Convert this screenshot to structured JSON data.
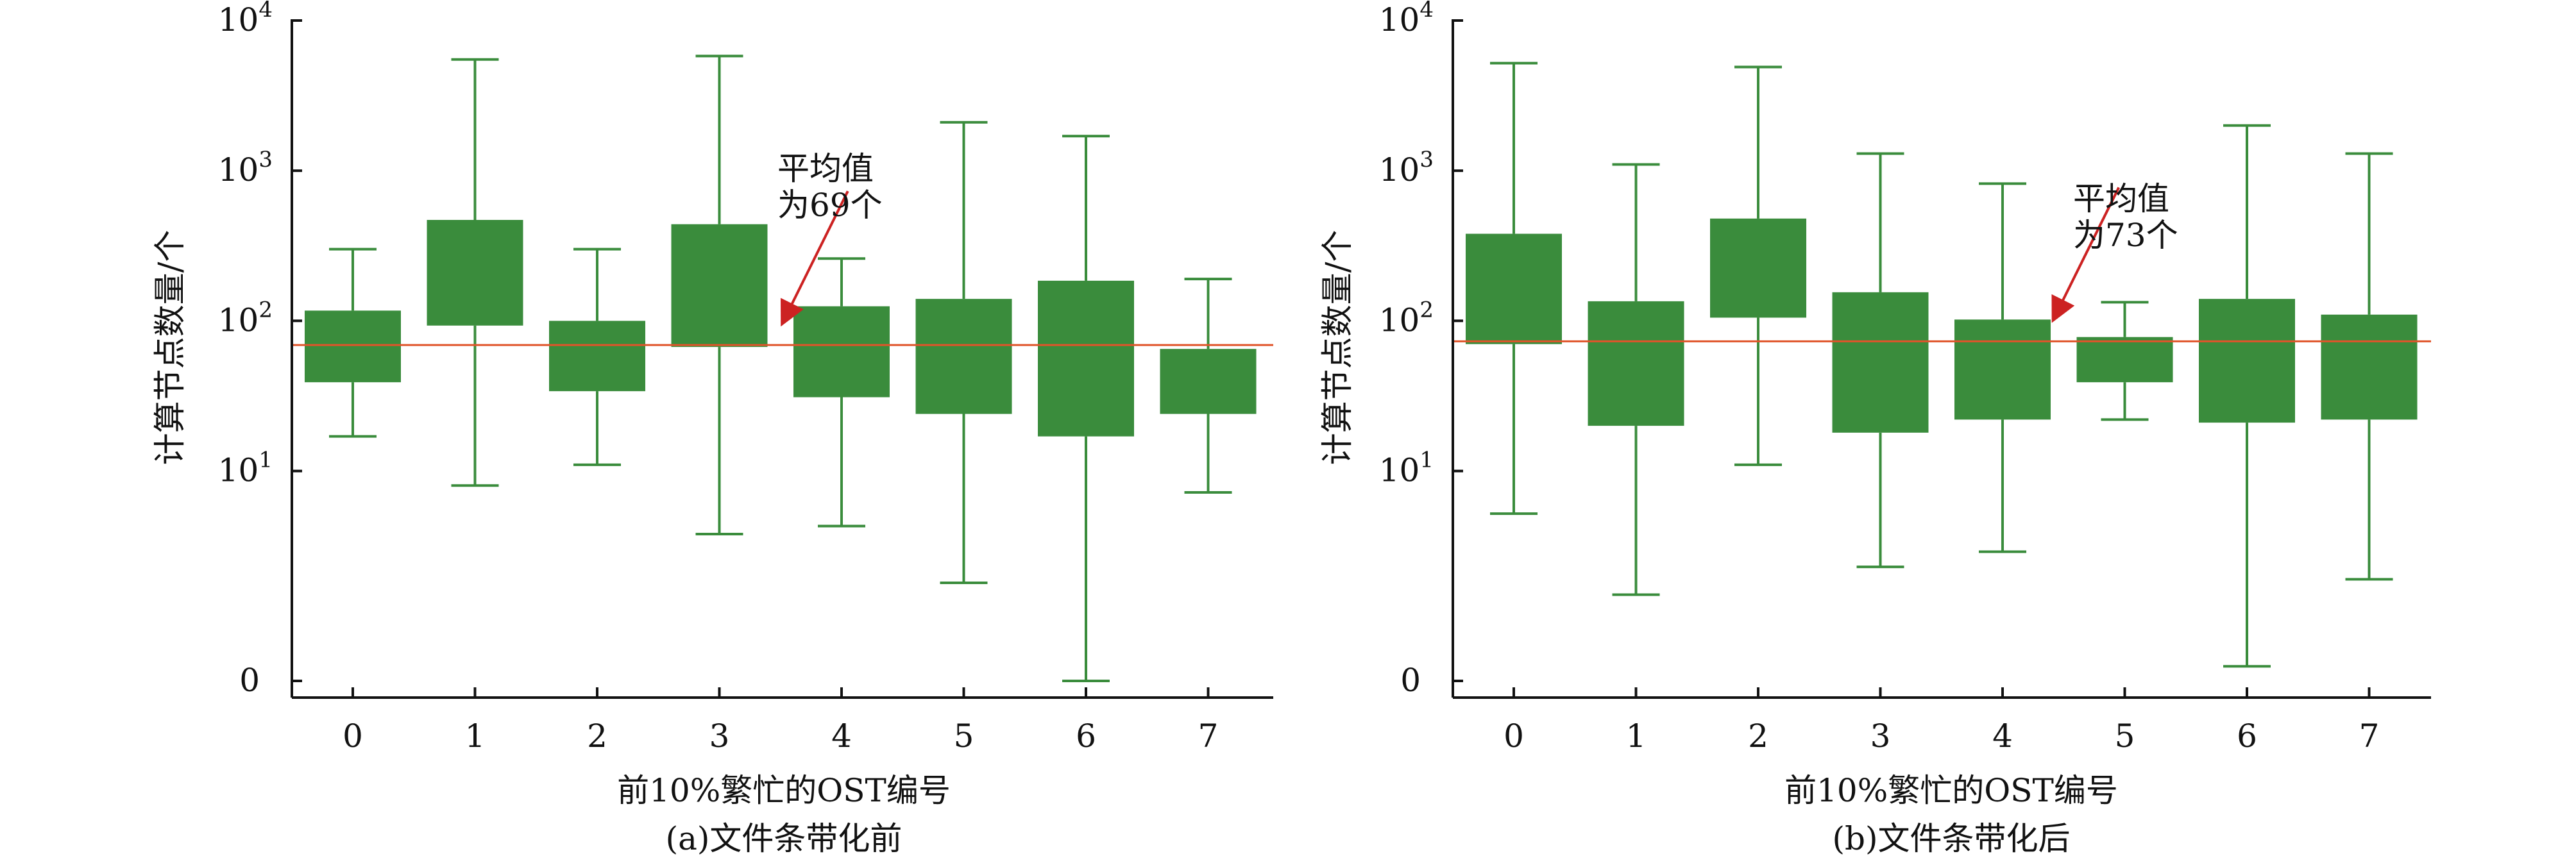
{
  "colors": {
    "box": "#3a8c3c",
    "whisker": "#3a8c3c",
    "mean_line": "#e0542a",
    "arrow": "#cc2222",
    "axis": "#111111"
  },
  "chart_data": [
    {
      "type": "box",
      "caption": "(a)文件条带化前",
      "xlabel": "前10%繁忙的OST编号",
      "ylabel": "计算节点数量/个",
      "yscale": "log",
      "ylim": [
        0.4,
        10000
      ],
      "yticks": [
        {
          "value": 0.4,
          "base": "0",
          "exp": ""
        },
        {
          "value": 10,
          "base": "10",
          "exp": "1"
        },
        {
          "value": 100,
          "base": "10",
          "exp": "2"
        },
        {
          "value": 1000,
          "base": "10",
          "exp": "3"
        },
        {
          "value": 10000,
          "base": "10",
          "exp": "4"
        }
      ],
      "categories": [
        "0",
        "1",
        "2",
        "3",
        "4",
        "5",
        "6",
        "7"
      ],
      "boxes": [
        {
          "min": 17,
          "q1": 39,
          "q3": 117,
          "max": 300
        },
        {
          "min": 8,
          "q1": 93,
          "q3": 470,
          "max": 5500
        },
        {
          "min": 11,
          "q1": 34,
          "q3": 100,
          "max": 300
        },
        {
          "min": 3.8,
          "q1": 67,
          "q3": 440,
          "max": 5800
        },
        {
          "min": 4.3,
          "q1": 31,
          "q3": 125,
          "max": 260
        },
        {
          "min": 1.8,
          "q1": 24,
          "q3": 140,
          "max": 2100
        },
        {
          "min": 0.4,
          "q1": 17,
          "q3": 185,
          "max": 1700
        },
        {
          "min": 7.2,
          "q1": 24,
          "q3": 65,
          "max": 190
        }
      ],
      "mean": 69,
      "annotation": {
        "line1": "平均值",
        "line2": "为69个",
        "target_category": 3.5
      }
    },
    {
      "type": "box",
      "caption": "(b)文件条带化后",
      "xlabel": "前10%繁忙的OST编号",
      "ylabel": "计算节点数量/个",
      "yscale": "log",
      "ylim": [
        0.4,
        10000
      ],
      "yticks": [
        {
          "value": 0.4,
          "base": "0",
          "exp": ""
        },
        {
          "value": 10,
          "base": "10",
          "exp": "1"
        },
        {
          "value": 100,
          "base": "10",
          "exp": "2"
        },
        {
          "value": 1000,
          "base": "10",
          "exp": "3"
        },
        {
          "value": 10000,
          "base": "10",
          "exp": "4"
        }
      ],
      "categories": [
        "0",
        "1",
        "2",
        "3",
        "4",
        "5",
        "6",
        "7"
      ],
      "boxes": [
        {
          "min": 5.2,
          "q1": 70,
          "q3": 380,
          "max": 5200
        },
        {
          "min": 1.5,
          "q1": 20,
          "q3": 135,
          "max": 1100
        },
        {
          "min": 11,
          "q1": 105,
          "q3": 480,
          "max": 4900
        },
        {
          "min": 2.3,
          "q1": 18,
          "q3": 155,
          "max": 1300
        },
        {
          "min": 2.9,
          "q1": 22,
          "q3": 102,
          "max": 820
        },
        {
          "min": 22,
          "q1": 39,
          "q3": 78,
          "max": 133
        },
        {
          "min": 0.5,
          "q1": 21,
          "q3": 140,
          "max": 2000
        },
        {
          "min": 1.9,
          "q1": 22,
          "q3": 110,
          "max": 1300
        }
      ],
      "mean": 73,
      "annotation": {
        "line1": "平均值",
        "line2": "为73个",
        "target_category": 4.4
      }
    }
  ]
}
